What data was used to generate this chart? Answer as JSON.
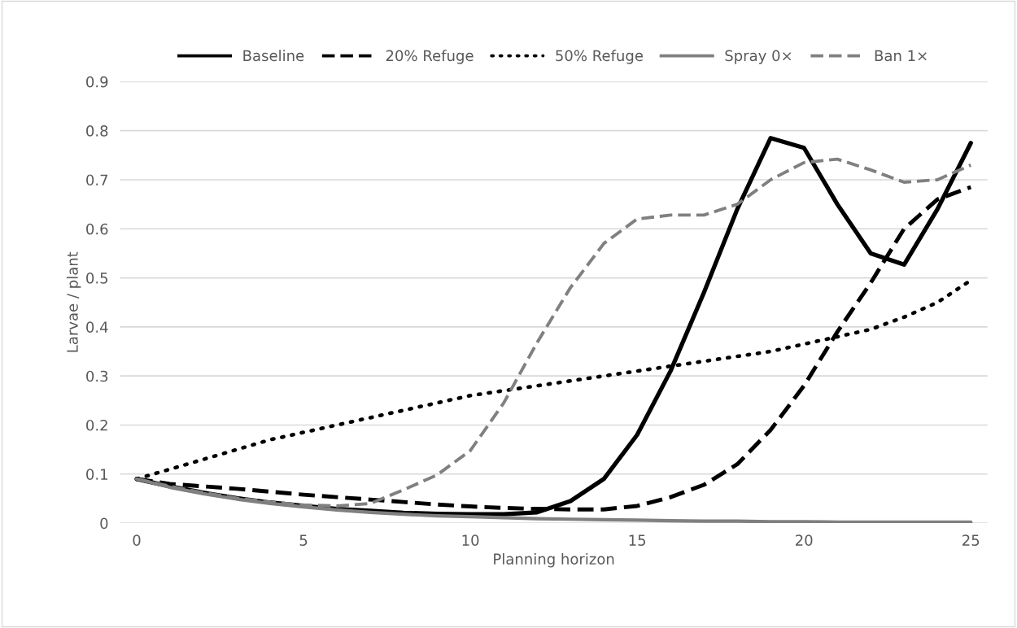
{
  "chart_data": {
    "type": "line",
    "xlabel": "Planning horizon",
    "ylabel": "Larvae / plant",
    "x": [
      0,
      1,
      2,
      3,
      4,
      5,
      6,
      7,
      8,
      9,
      10,
      11,
      12,
      13,
      14,
      15,
      16,
      17,
      18,
      19,
      20,
      21,
      22,
      23,
      24,
      25
    ],
    "xlim": [
      -0.5,
      25.5
    ],
    "xticks": [
      0,
      5,
      10,
      15,
      20,
      25
    ],
    "ylim": [
      0,
      0.9
    ],
    "yticks": [
      0,
      0.1,
      0.2,
      0.3,
      0.4,
      0.5,
      0.6,
      0.7,
      0.8,
      0.9
    ],
    "grid": "y",
    "legend": "top",
    "series": [
      {
        "name": "Baseline",
        "color": "#000000",
        "line_style": "solid",
        "values": [
          0.09,
          0.075,
          0.062,
          0.051,
          0.042,
          0.035,
          0.029,
          0.025,
          0.021,
          0.019,
          0.018,
          0.018,
          0.022,
          0.045,
          0.09,
          0.18,
          0.31,
          0.47,
          0.64,
          0.785,
          0.765,
          0.65,
          0.55,
          0.527,
          0.64,
          0.775
        ]
      },
      {
        "name": "20% Refuge",
        "color": "#000000",
        "line_style": "dashed",
        "values": [
          0.09,
          0.08,
          0.075,
          0.07,
          0.064,
          0.058,
          0.053,
          0.048,
          0.043,
          0.038,
          0.034,
          0.031,
          0.029,
          0.028,
          0.028,
          0.035,
          0.053,
          0.078,
          0.12,
          0.19,
          0.28,
          0.39,
          0.49,
          0.6,
          0.66,
          0.685
        ]
      },
      {
        "name": "50% Refuge",
        "color": "#000000",
        "line_style": "dotted",
        "values": [
          0.09,
          0.11,
          0.13,
          0.15,
          0.17,
          0.185,
          0.2,
          0.215,
          0.23,
          0.245,
          0.26,
          0.27,
          0.28,
          0.29,
          0.3,
          0.31,
          0.32,
          0.33,
          0.34,
          0.35,
          0.365,
          0.38,
          0.395,
          0.42,
          0.45,
          0.495
        ]
      },
      {
        "name": "Spray 0×",
        "color": "#808080",
        "line_style": "solid",
        "values": [
          0.09,
          0.073,
          0.06,
          0.049,
          0.04,
          0.033,
          0.027,
          0.022,
          0.018,
          0.015,
          0.013,
          0.011,
          0.009,
          0.008,
          0.007,
          0.006,
          0.005,
          0.004,
          0.004,
          0.003,
          0.003,
          0.002,
          0.002,
          0.002,
          0.002,
          0.002
        ]
      },
      {
        "name": "Ban 1×",
        "color": "#808080",
        "line_style": "dashed",
        "values": [
          0.09,
          0.075,
          0.062,
          0.051,
          0.043,
          0.037,
          0.035,
          0.04,
          0.068,
          0.098,
          0.148,
          0.245,
          0.368,
          0.48,
          0.57,
          0.62,
          0.628,
          0.628,
          0.65,
          0.7,
          0.735,
          0.742,
          0.72,
          0.695,
          0.7,
          0.73
        ]
      }
    ]
  }
}
